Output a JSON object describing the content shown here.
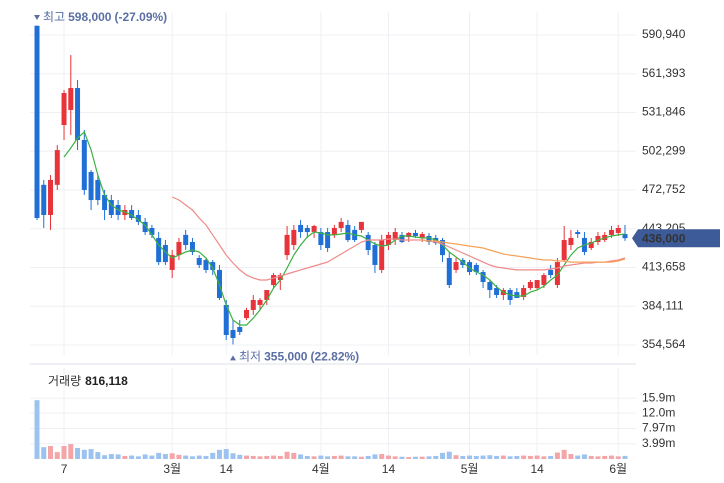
{
  "chart_data": {
    "type": "candlestick",
    "up_color": "#e8333a",
    "down_color": "#1f6fd6",
    "volume_up_color": "#f3a5a8",
    "volume_down_color": "#9cc3f0",
    "categories": [
      null,
      null,
      null,
      null,
      "7",
      null,
      null,
      null,
      null,
      null,
      null,
      null,
      null,
      null,
      null,
      null,
      null,
      null,
      null,
      null,
      "3월",
      null,
      null,
      null,
      null,
      null,
      null,
      null,
      "14",
      null,
      null,
      null,
      null,
      null,
      null,
      null,
      null,
      null,
      null,
      null,
      null,
      null,
      "4월",
      null,
      null,
      null,
      null,
      null,
      null,
      null,
      null,
      null,
      "14",
      null,
      null,
      null,
      null,
      null,
      null,
      null,
      null,
      null,
      null,
      null,
      "5월",
      null,
      null,
      null,
      null,
      null,
      null,
      null,
      null,
      null,
      "14",
      null,
      null,
      null,
      null,
      null,
      null,
      null,
      null,
      null,
      null,
      null,
      "6월",
      null
    ],
    "open": [
      598000,
      476700,
      453700,
      476700,
      522300,
      533800,
      550500,
      510900,
      486500,
      480400,
      469000,
      465100,
      461300,
      453700,
      457500,
      453700,
      448400,
      443800,
      436200,
      430800,
      411800,
      423100,
      438500,
      433100,
      420900,
      419400,
      417800,
      411800,
      385100,
      366000,
      368300,
      375100,
      381300,
      385100,
      388900,
      400300,
      404100,
      423100,
      430800,
      446100,
      443800,
      440700,
      440700,
      440700,
      438500,
      443800,
      446100,
      442300,
      442300,
      438500,
      430800,
      411800,
      430800,
      434600,
      438500,
      436900,
      440000,
      436200,
      437700,
      436200,
      434600,
      420900,
      411800,
      419400,
      417800,
      415600,
      410200,
      402600,
      398000,
      392700,
      396500,
      394900,
      391200,
      398000,
      398000,
      400300,
      411800,
      400300,
      419400,
      430800,
      440700,
      436200,
      428500,
      433100,
      434600,
      438500,
      440000,
      439200
    ],
    "high": [
      598000,
      480400,
      484200,
      507000,
      549000,
      575700,
      556600,
      518500,
      488000,
      484200,
      472800,
      469000,
      465100,
      461300,
      461300,
      457500,
      451400,
      446100,
      440700,
      434600,
      427000,
      436200,
      442300,
      436200,
      423100,
      420900,
      419400,
      415600,
      388900,
      373600,
      373600,
      383000,
      392700,
      390400,
      396500,
      409500,
      409500,
      445300,
      446100,
      449900,
      446100,
      446100,
      443800,
      443800,
      446100,
      451400,
      449900,
      445300,
      448400,
      440700,
      433100,
      438500,
      440700,
      443800,
      440700,
      440700,
      442300,
      440700,
      440000,
      438500,
      436200,
      425500,
      420900,
      420900,
      419400,
      417100,
      411800,
      404100,
      400300,
      398000,
      398000,
      398000,
      400300,
      404100,
      404100,
      409500,
      415600,
      420900,
      445300,
      442300,
      442300,
      440700,
      436200,
      440700,
      440700,
      445300,
      446100,
      446100
    ],
    "low": [
      449900,
      443800,
      442300,
      472800,
      510900,
      514700,
      503200,
      469000,
      457500,
      461300,
      449900,
      451400,
      449900,
      449900,
      449900,
      446100,
      438500,
      436200,
      415600,
      415600,
      405600,
      419400,
      427000,
      423100,
      413300,
      409500,
      407900,
      388900,
      358400,
      355000,
      362200,
      373600,
      377500,
      381300,
      385100,
      398000,
      396500,
      419400,
      427000,
      436200,
      436200,
      436200,
      427000,
      425500,
      436200,
      440700,
      433100,
      433100,
      440000,
      423100,
      409500,
      409500,
      427000,
      430800,
      432300,
      433100,
      436200,
      433100,
      430800,
      430800,
      417800,
      398000,
      409500,
      413300,
      407900,
      407900,
      398000,
      390400,
      390400,
      388900,
      385100,
      390400,
      388900,
      396500,
      396500,
      398000,
      405600,
      398000,
      417800,
      427000,
      436200,
      423100,
      427000,
      430800,
      433100,
      436200,
      437700,
      434000
    ],
    "close": [
      451400,
      453700,
      480400,
      503200,
      546700,
      550500,
      510900,
      472800,
      465100,
      465100,
      457500,
      453700,
      453700,
      457500,
      451400,
      448400,
      440700,
      438500,
      417800,
      417800,
      423100,
      433100,
      430800,
      425500,
      415600,
      411800,
      411800,
      390400,
      362200,
      359900,
      364500,
      381300,
      388900,
      388900,
      396500,
      407900,
      407900,
      438500,
      442300,
      440700,
      440700,
      445300,
      430800,
      428500,
      443800,
      448400,
      434600,
      434600,
      448400,
      427000,
      415600,
      434600,
      438500,
      440700,
      433100,
      440000,
      437700,
      439200,
      433100,
      432300,
      423100,
      400300,
      417800,
      415600,
      410200,
      410200,
      402600,
      396500,
      392700,
      396500,
      388900,
      390400,
      398000,
      402600,
      404100,
      407900,
      407900,
      417800,
      434600,
      436200,
      439200,
      425500,
      433100,
      437700,
      438500,
      442300,
      443800,
      436000
    ],
    "moving_averages": [
      {
        "color": "#3cb043",
        "values": [
          null,
          null,
          null,
          null,
          497900,
          504800,
          512400,
          517000,
          503300,
          484200,
          468900,
          461300,
          457500,
          456000,
          453700,
          449900,
          446100,
          438500,
          430800,
          425500,
          420900,
          423100,
          425500,
          427000,
          425500,
          420900,
          413300,
          400300,
          385100,
          373600,
          369800,
          369800,
          375100,
          381300,
          388900,
          398000,
          404100,
          413300,
          423100,
          430800,
          436900,
          440700,
          440000,
          438500,
          438500,
          439200,
          440000,
          438500,
          437700,
          434600,
          431600,
          430000,
          430800,
          434600,
          437700,
          437700,
          436900,
          436200,
          436200,
          434600,
          430800,
          425500,
          421700,
          417800,
          413300,
          410200,
          407900,
          404100,
          398800,
          394900,
          392700,
          391900,
          391900,
          394900,
          396500,
          399500,
          404100,
          407900,
          415600,
          423100,
          428500,
          430800,
          432300,
          434600,
          436200,
          437700,
          438500,
          439200
        ]
      },
      {
        "color": "#f08a8a",
        "values": [
          null,
          null,
          null,
          null,
          null,
          null,
          null,
          null,
          null,
          null,
          null,
          null,
          null,
          null,
          null,
          null,
          null,
          null,
          null,
          null,
          467400,
          465100,
          461300,
          457500,
          451400,
          446100,
          438500,
          430800,
          423100,
          417100,
          411800,
          407900,
          405600,
          404100,
          404100,
          405600,
          407200,
          408700,
          410200,
          411800,
          413300,
          414800,
          416300,
          417800,
          420900,
          423900,
          427000,
          430000,
          433100,
          434600,
          434600,
          434600,
          435400,
          435400,
          434600,
          434600,
          434600,
          434600,
          433900,
          433100,
          431600,
          429300,
          427000,
          424700,
          422400,
          420100,
          417800,
          415600,
          414000,
          413300,
          412500,
          411800,
          411800,
          411800,
          411800,
          411800,
          412500,
          413300,
          414800,
          415600,
          416300,
          417100,
          417100,
          417800,
          417800,
          418600,
          419400,
          420900
        ]
      },
      {
        "color": "#f5a25a",
        "values": [
          null,
          null,
          null,
          null,
          null,
          null,
          null,
          null,
          null,
          null,
          null,
          null,
          null,
          null,
          null,
          null,
          null,
          null,
          null,
          null,
          null,
          null,
          null,
          null,
          null,
          null,
          null,
          null,
          null,
          null,
          null,
          null,
          null,
          null,
          null,
          null,
          null,
          null,
          null,
          null,
          null,
          null,
          null,
          null,
          null,
          null,
          null,
          null,
          null,
          null,
          null,
          null,
          null,
          null,
          null,
          null,
          null,
          434600,
          433900,
          433900,
          433100,
          432300,
          431600,
          430800,
          430000,
          429300,
          428500,
          427000,
          425500,
          423900,
          423100,
          422400,
          421700,
          420900,
          420100,
          419400,
          419400,
          418600,
          418600,
          417800,
          417800,
          417800,
          417800,
          417800,
          417800,
          417800,
          418600,
          420100
        ]
      }
    ],
    "ylim": [
      346940,
      603900
    ],
    "yticks": [
      {
        "value": 354564,
        "label": "354,564"
      },
      {
        "value": 384111,
        "label": "384,111"
      },
      {
        "value": 413658,
        "label": "413,658"
      },
      {
        "value": 443205,
        "label": "443,205"
      },
      {
        "value": 472752,
        "label": "472,752"
      },
      {
        "value": 502299,
        "label": "502,299"
      },
      {
        "value": 531846,
        "label": "531,846"
      },
      {
        "value": 561393,
        "label": "561,393"
      },
      {
        "value": 590940,
        "label": "590,940"
      }
    ],
    "grid": true,
    "max_annotation": {
      "label": "최고",
      "value": 598000,
      "value_label": "598,000",
      "change": "(-27.09%)"
    },
    "min_annotation": {
      "label": "최저",
      "value": 355000,
      "value_label": "355,000",
      "change": "(22.82%)"
    },
    "last_price": {
      "value": 436000,
      "label": "436,000",
      "color": "#3d5a99"
    },
    "volume": {
      "caption_label": "거래량",
      "caption_value": 816118,
      "caption_value_label": "816,118",
      "ylim": [
        0,
        23300000
      ],
      "yticks": [
        {
          "value": 3990000,
          "label": "3.99m"
        },
        {
          "value": 7970000,
          "label": "7.97m"
        },
        {
          "value": 12000000,
          "label": "12.0m"
        },
        {
          "value": 15900000,
          "label": "15.9m"
        }
      ],
      "values": [
        15400000,
        3100000,
        3400000,
        1800000,
        3400000,
        3900000,
        2900000,
        2400000,
        2600000,
        1800000,
        1000000,
        1300000,
        1200000,
        800000,
        900000,
        700000,
        1200000,
        900000,
        1600000,
        1300000,
        1500000,
        1100000,
        900000,
        700000,
        900000,
        800000,
        1600000,
        2400000,
        2600000,
        1500000,
        1100000,
        900000,
        800000,
        700000,
        800000,
        900000,
        800000,
        1900000,
        1600000,
        1200000,
        800000,
        700000,
        900000,
        700000,
        800000,
        900000,
        700000,
        700000,
        600000,
        800000,
        1200000,
        1300000,
        900000,
        700000,
        600000,
        500000,
        600000,
        600000,
        700000,
        800000,
        1600000,
        1900000,
        1000000,
        800000,
        900000,
        800000,
        900000,
        1000000,
        800000,
        900000,
        700000,
        800000,
        900000,
        800000,
        900000,
        700000,
        800000,
        1700000,
        2400000,
        1300000,
        900000,
        1200000,
        800000,
        700000,
        800000,
        900000,
        700000,
        816118
      ]
    }
  }
}
